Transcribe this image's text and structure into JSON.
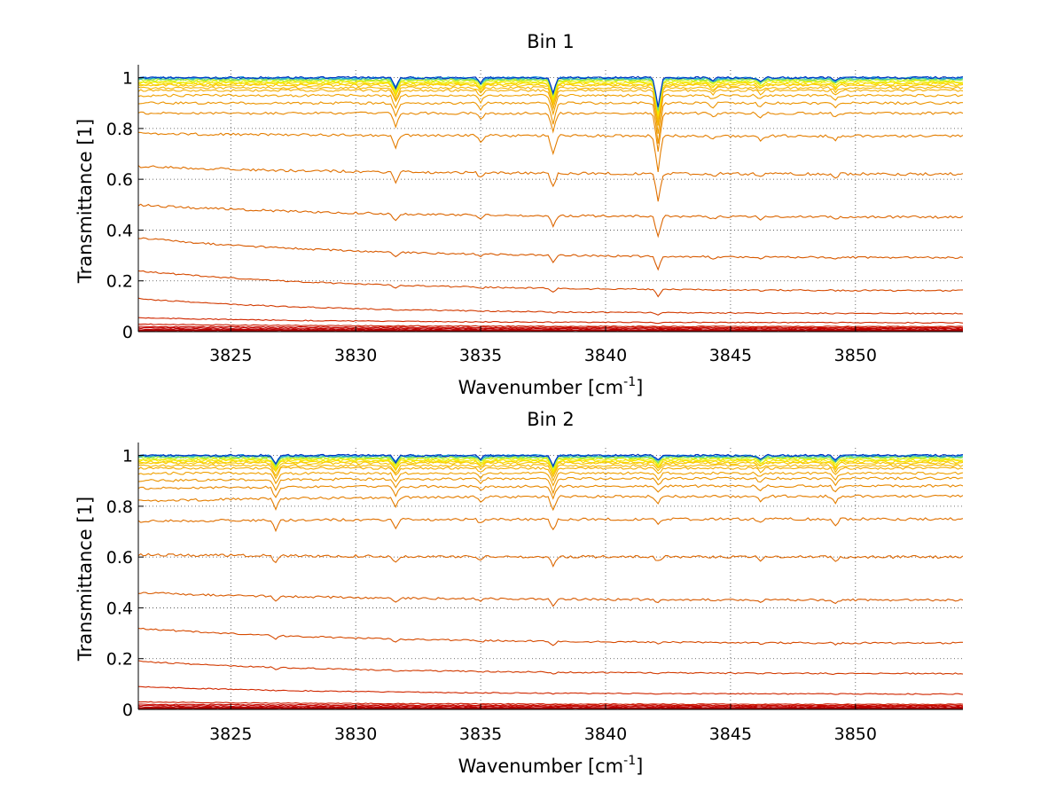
{
  "chart_data": [
    {
      "type": "line",
      "title": "Bin 1",
      "xlabel": "Wavenumber [cm",
      "xlabel_sup": "-1",
      "xlabel_close": "]",
      "ylabel": "Transmittance [1]",
      "xlim": [
        3821.3,
        3854.3
      ],
      "ylim": [
        0,
        1.03
      ],
      "x_ticks": [
        "3825",
        "3830",
        "3835",
        "3840",
        "3845",
        "3850"
      ],
      "y_ticks": [
        "0",
        "0.2",
        "0.4",
        "0.6",
        "0.8",
        "1"
      ],
      "grid": "dotted",
      "line_count": 30,
      "levels_start": [
        0.0,
        0.002,
        0.004,
        0.006,
        0.01,
        0.015,
        0.02,
        0.03,
        0.055,
        0.13,
        0.24,
        0.37,
        0.5,
        0.65,
        0.78,
        0.86,
        0.9,
        0.93,
        0.95,
        0.96,
        0.97,
        0.975,
        0.98,
        0.985,
        0.99,
        0.993,
        0.995,
        0.997,
        0.999,
        1.0
      ],
      "levels_end": [
        0.0,
        0.002,
        0.004,
        0.006,
        0.008,
        0.012,
        0.016,
        0.02,
        0.035,
        0.07,
        0.16,
        0.29,
        0.45,
        0.62,
        0.77,
        0.86,
        0.9,
        0.93,
        0.95,
        0.96,
        0.97,
        0.975,
        0.98,
        0.985,
        0.99,
        0.993,
        0.995,
        0.997,
        0.999,
        1.0
      ],
      "absorption_lines": [
        {
          "x": 3831.6,
          "depth": 0.06
        },
        {
          "x": 3835.0,
          "depth": 0.03
        },
        {
          "x": 3837.9,
          "depth": 0.09
        },
        {
          "x": 3842.1,
          "depth": 0.18
        },
        {
          "x": 3844.3,
          "depth": 0.02
        },
        {
          "x": 3846.2,
          "depth": 0.02
        },
        {
          "x": 3849.2,
          "depth": 0.02
        }
      ],
      "colors": [
        "#8b0000",
        "#960000",
        "#a00000",
        "#aa0000",
        "#b40000",
        "#bf0000",
        "#c80a00",
        "#cc1a00",
        "#d02800",
        "#d23a00",
        "#d64a00",
        "#d85a00",
        "#dc6600",
        "#e07000",
        "#e47e00",
        "#e88800",
        "#ec9400",
        "#f0a000",
        "#f4ac00",
        "#f6b800",
        "#f8c600",
        "#fad400",
        "#f8e400",
        "#e8f000",
        "#c8f020",
        "#a0e840",
        "#70d880",
        "#40c8c0",
        "#1890e0",
        "#0030c0"
      ]
    },
    {
      "type": "line",
      "title": "Bin 2",
      "xlabel": "Wavenumber [cm",
      "xlabel_sup": "-1",
      "xlabel_close": "]",
      "ylabel": "Transmittance [1]",
      "xlim": [
        3821.3,
        3854.3
      ],
      "ylim": [
        0,
        1.03
      ],
      "x_ticks": [
        "3825",
        "3830",
        "3835",
        "3840",
        "3845",
        "3850"
      ],
      "y_ticks": [
        "0",
        "0.2",
        "0.4",
        "0.6",
        "0.8",
        "1"
      ],
      "grid": "dotted",
      "line_count": 30,
      "levels_start": [
        0.0,
        0.002,
        0.004,
        0.006,
        0.01,
        0.015,
        0.02,
        0.03,
        0.09,
        0.19,
        0.32,
        0.46,
        0.61,
        0.74,
        0.82,
        0.87,
        0.9,
        0.93,
        0.95,
        0.96,
        0.97,
        0.975,
        0.98,
        0.985,
        0.99,
        0.993,
        0.995,
        0.997,
        0.999,
        1.0
      ],
      "levels_end": [
        0.0,
        0.002,
        0.004,
        0.006,
        0.008,
        0.012,
        0.016,
        0.02,
        0.06,
        0.14,
        0.26,
        0.43,
        0.6,
        0.75,
        0.84,
        0.88,
        0.91,
        0.93,
        0.95,
        0.96,
        0.97,
        0.975,
        0.98,
        0.985,
        0.99,
        0.993,
        0.995,
        0.997,
        0.999,
        1.0
      ],
      "absorption_lines": [
        {
          "x": 3826.8,
          "depth": 0.05
        },
        {
          "x": 3831.6,
          "depth": 0.04
        },
        {
          "x": 3835.0,
          "depth": 0.02
        },
        {
          "x": 3837.9,
          "depth": 0.06
        },
        {
          "x": 3842.1,
          "depth": 0.03
        },
        {
          "x": 3846.2,
          "depth": 0.02
        },
        {
          "x": 3849.2,
          "depth": 0.03
        }
      ],
      "colors": [
        "#8b0000",
        "#960000",
        "#a00000",
        "#aa0000",
        "#b40000",
        "#bf0000",
        "#c80a00",
        "#cc1a00",
        "#d02800",
        "#d23a00",
        "#d64a00",
        "#d85a00",
        "#dc6600",
        "#e07000",
        "#e47e00",
        "#e88800",
        "#ec9400",
        "#f0a000",
        "#f4ac00",
        "#f6b800",
        "#f8c600",
        "#fad400",
        "#f8e400",
        "#e8f000",
        "#c8f020",
        "#a0e840",
        "#70d880",
        "#40c8c0",
        "#1890e0",
        "#0030c0"
      ]
    }
  ]
}
